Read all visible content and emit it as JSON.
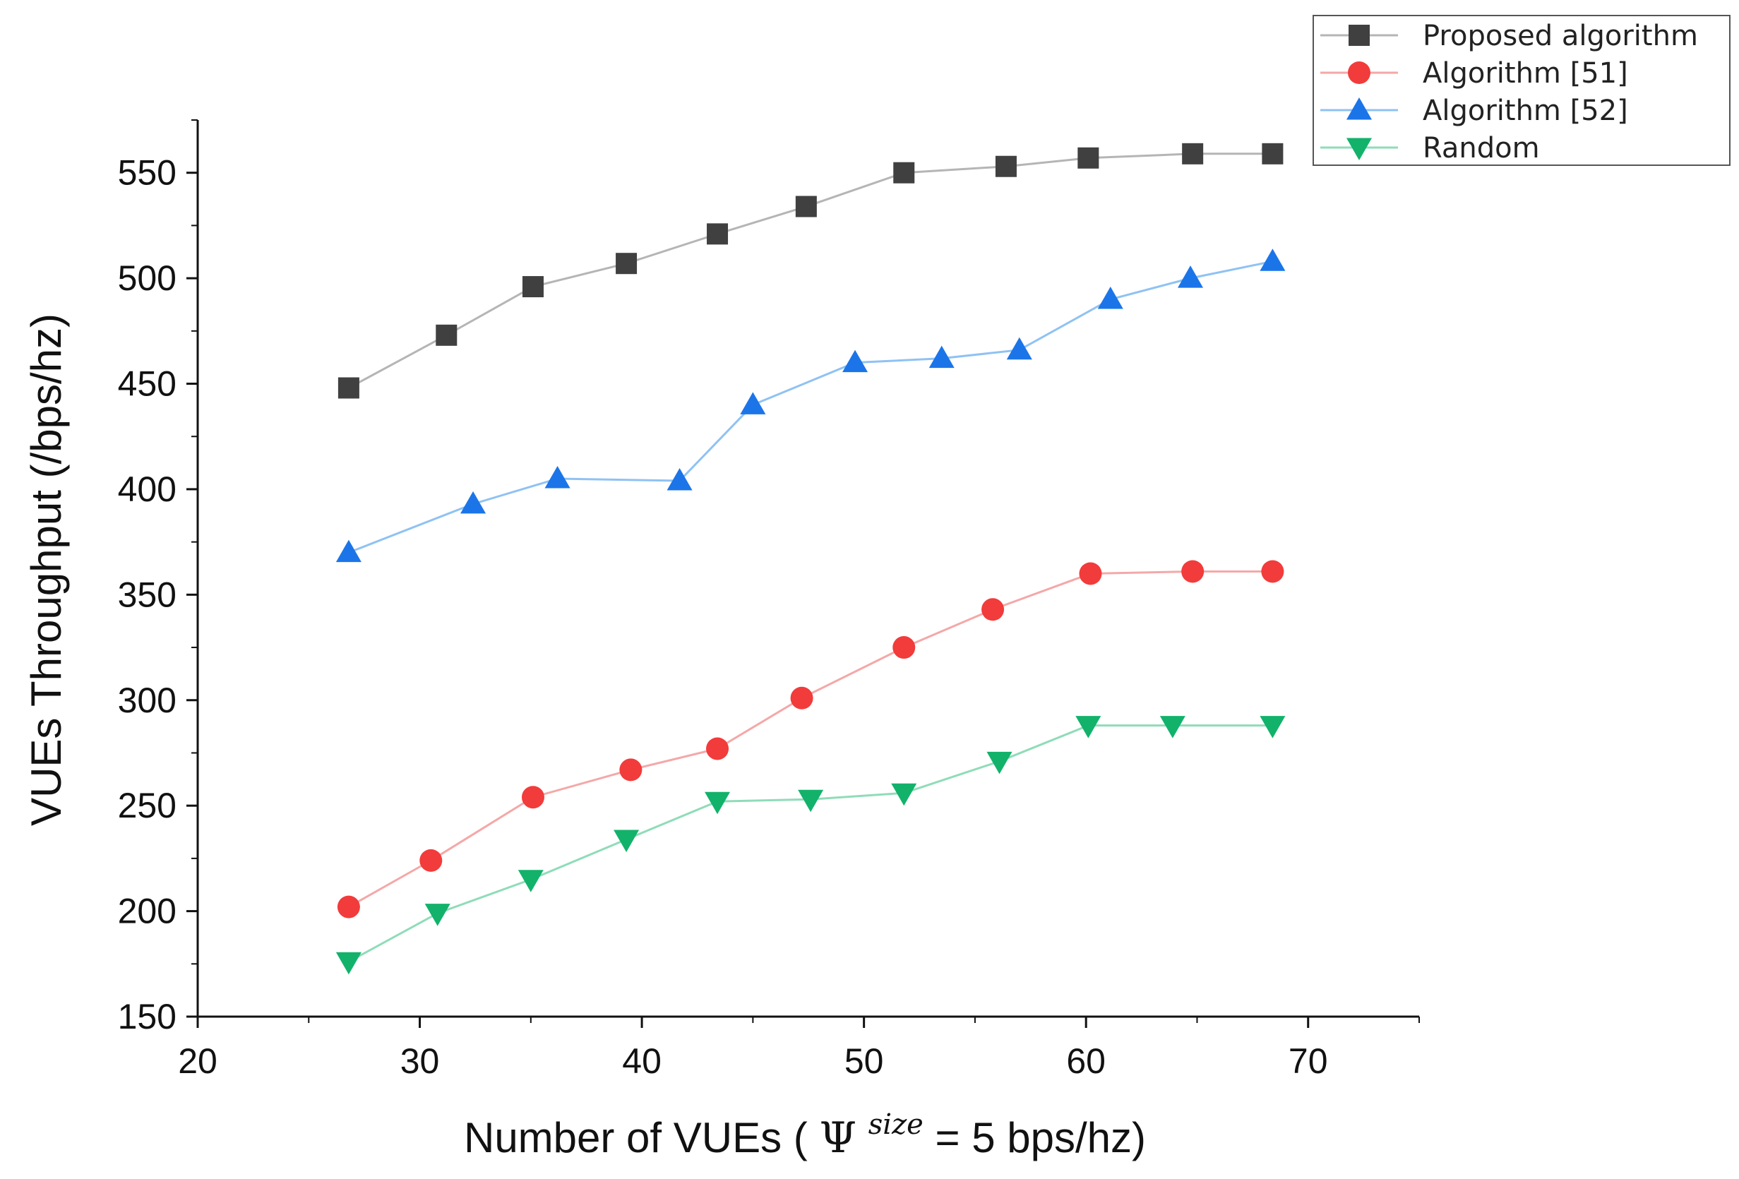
{
  "chart_data": {
    "type": "line",
    "title": "",
    "xlabel": "Number of VUEs (",
    "xlabel_symbol": "Ψ",
    "xlabel_superscript": "size",
    "xlabel_suffix": " = 5 bps/hz)",
    "ylabel": "VUEs Throughput (/bps/hz)",
    "xlim": [
      20,
      75
    ],
    "ylim": [
      150,
      575
    ],
    "xticks": [
      20,
      30,
      40,
      50,
      60,
      70
    ],
    "yticks": [
      150,
      200,
      250,
      300,
      350,
      400,
      450,
      500,
      550
    ],
    "legend_position": "top-right",
    "series": [
      {
        "name": "Proposed algorithm",
        "color": "#404040",
        "line_color": "#b5b5b5",
        "marker": "square",
        "x": [
          26.8,
          31.2,
          35.1,
          39.3,
          43.4,
          47.4,
          51.8,
          56.4,
          60.1,
          64.8,
          68.4
        ],
        "y": [
          448,
          473,
          496,
          507,
          521,
          534,
          550,
          553,
          557,
          559,
          559
        ]
      },
      {
        "name": "Algorithm [51]",
        "color": "#f23b3b",
        "line_color": "#f4a8a8",
        "marker": "circle",
        "x": [
          26.8,
          30.5,
          35.1,
          39.5,
          43.4,
          47.2,
          51.8,
          55.8,
          60.2,
          64.8,
          68.4
        ],
        "y": [
          202,
          224,
          254,
          267,
          277,
          301,
          325,
          343,
          360,
          361,
          361
        ]
      },
      {
        "name": "Algorithm [52]",
        "color": "#1b75e8",
        "line_color": "#8fc2f3",
        "marker": "triangle-up",
        "x": [
          26.8,
          32.4,
          36.2,
          41.7,
          45.0,
          49.6,
          53.5,
          57.0,
          61.1,
          64.7,
          68.4
        ],
        "y": [
          370,
          393,
          405,
          404,
          440,
          460,
          462,
          466,
          490,
          500,
          508
        ]
      },
      {
        "name": "Random",
        "color": "#12b26b",
        "line_color": "#8fdcb8",
        "marker": "triangle-down",
        "x": [
          26.8,
          30.8,
          35.0,
          39.3,
          43.4,
          47.6,
          51.8,
          56.1,
          60.1,
          63.9,
          68.4
        ],
        "y": [
          176,
          199,
          215,
          234,
          252,
          253,
          256,
          271,
          288,
          288,
          288
        ]
      }
    ]
  }
}
